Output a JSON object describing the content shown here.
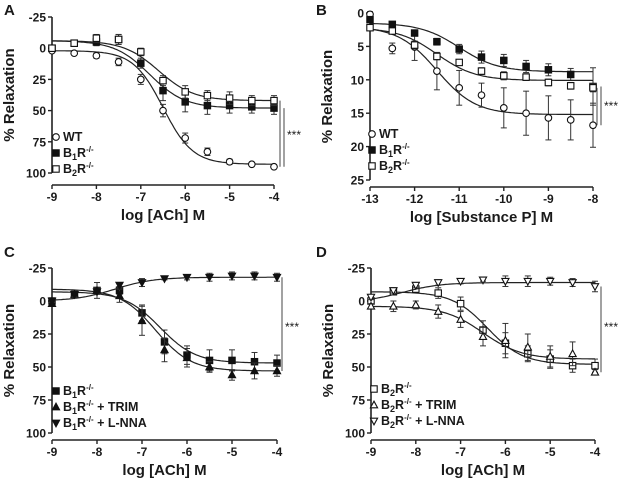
{
  "chart_data": [
    {
      "panel": "A",
      "type": "line",
      "xlabel": "log [ACh] M",
      "ylabel": "% Relaxation",
      "xlim": [
        -9,
        -4
      ],
      "ylim": [
        -25,
        100
      ],
      "y_inverted": true,
      "xticks": [
        -9,
        -8,
        -7,
        -6,
        -5,
        -4
      ],
      "yticks": [
        -25,
        0,
        25,
        50,
        75,
        100
      ],
      "x": [
        -9,
        -8.5,
        -8,
        -7.5,
        -7,
        -6.5,
        -6,
        -5.5,
        -5,
        -4.5,
        -4
      ],
      "significance": "***",
      "series": [
        {
          "name": "WT",
          "legend": {
            "base": "WT",
            "sub": "",
            "mid": "",
            "sup": "",
            "suffix": ""
          },
          "marker": "circle-open",
          "values": [
            2,
            4,
            6,
            11,
            25,
            50,
            72,
            83,
            91,
            93,
            95
          ],
          "errors": [
            1,
            1,
            2,
            3,
            4,
            5,
            4,
            3,
            2,
            1,
            1
          ],
          "fit": {
            "top": 2,
            "bottom": 93,
            "logEC50": -6.5,
            "hill": 1.3
          }
        },
        {
          "name": "B1R-/-",
          "legend": {
            "base": "B",
            "sub": "1",
            "mid": "R",
            "sup": "-/-",
            "suffix": ""
          },
          "marker": "square-filled",
          "values": [
            0,
            -4,
            -5,
            -7,
            12,
            34,
            43,
            46,
            46,
            47,
            48
          ],
          "errors": [
            1,
            1,
            3,
            4,
            4,
            8,
            8,
            7,
            6,
            5,
            5
          ],
          "fit": {
            "top": -6,
            "bottom": 48,
            "logEC50": -6.8,
            "hill": 1.1
          }
        },
        {
          "name": "B2R-/-",
          "legend": {
            "base": "B",
            "sub": "2",
            "mid": "R",
            "sup": "-/-",
            "suffix": ""
          },
          "marker": "square-open",
          "values": [
            0,
            -4,
            -8,
            -7,
            3,
            26,
            35,
            38,
            40,
            42,
            42
          ],
          "errors": [
            1,
            1,
            3,
            4,
            3,
            4,
            5,
            4,
            5,
            4,
            4
          ],
          "fit": {
            "top": -6,
            "bottom": 42,
            "logEC50": -6.6,
            "hill": 1.1
          }
        }
      ]
    },
    {
      "panel": "B",
      "type": "line",
      "xlabel": "log [Substance P] M",
      "ylabel": "% Relaxation",
      "xlim": [
        -13,
        -8
      ],
      "ylim": [
        0,
        25
      ],
      "y_inverted": true,
      "xticks": [
        -13,
        -12,
        -11,
        -10,
        -9,
        -8
      ],
      "yticks": [
        0,
        5,
        10,
        15,
        20,
        25
      ],
      "x": [
        -13,
        -12.5,
        -12,
        -11.5,
        -11,
        -10.5,
        -10,
        -9.5,
        -9,
        -8.5,
        -8
      ],
      "significance": "***",
      "series": [
        {
          "name": "WT",
          "legend": {
            "base": "WT",
            "sub": "",
            "mid": "",
            "sup": "",
            "suffix": ""
          },
          "marker": "circle-open",
          "values": [
            0.2,
            5.3,
            5.1,
            8.7,
            11.2,
            12.3,
            14.2,
            15.0,
            15.7,
            16.0,
            16.8
          ],
          "errors": [
            0.4,
            0.8,
            2.0,
            2.8,
            2.6,
            1.8,
            3.0,
            3.3,
            3.3,
            3.0,
            3.3
          ],
          "fit": {
            "top": 2,
            "bottom": 15.2,
            "logEC50": -11.5,
            "hill": 1.0
          }
        },
        {
          "name": "B1R-/-",
          "legend": {
            "base": "B",
            "sub": "1",
            "mid": "R",
            "sup": "-/-",
            "suffix": ""
          },
          "marker": "square-filled",
          "values": [
            1.0,
            1.7,
            3.0,
            4.3,
            5.4,
            6.6,
            7.1,
            8.0,
            8.5,
            9.2,
            11.0
          ],
          "errors": [
            0.3,
            0.3,
            0.4,
            0.5,
            0.7,
            0.9,
            0.9,
            0.9,
            0.9,
            0.9,
            2.8
          ],
          "fit": {
            "top": 1.5,
            "bottom": 8.8,
            "logEC50": -11.0,
            "hill": 1.0
          }
        },
        {
          "name": "B2R-/-",
          "legend": {
            "base": "B",
            "sub": "2",
            "mid": "R",
            "sup": "-/-",
            "suffix": ""
          },
          "marker": "square-open",
          "values": [
            2.2,
            2.7,
            4.8,
            6.5,
            7.4,
            8.7,
            9.4,
            9.6,
            10.4,
            10.9,
            11.2
          ],
          "errors": [
            0.3,
            0.4,
            0.6,
            0.5,
            0.4,
            0.5,
            0.6,
            0.5,
            0.5,
            0.5,
            0.6
          ],
          "fit": {
            "top": 2.2,
            "bottom": 10.1,
            "logEC50": -11.5,
            "hill": 1.0
          }
        }
      ]
    },
    {
      "panel": "C",
      "type": "line",
      "xlabel": "log [ACh] M",
      "ylabel": "% Relaxation",
      "xlim": [
        -9,
        -4
      ],
      "ylim": [
        -25,
        100
      ],
      "y_inverted": true,
      "xticks": [
        -9,
        -8,
        -7,
        -6,
        -5,
        -4
      ],
      "yticks": [
        -25,
        0,
        25,
        50,
        75,
        100
      ],
      "x": [
        -9,
        -8.5,
        -8,
        -7.5,
        -7,
        -6.5,
        -6,
        -5.5,
        -5,
        -4.5,
        -4
      ],
      "significance": "***",
      "series": [
        {
          "name": "B1R-/-",
          "legend": {
            "base": "B",
            "sub": "1",
            "mid": "R",
            "sup": "-/-",
            "suffix": ""
          },
          "marker": "square-filled",
          "values": [
            0,
            -5,
            -8,
            -8,
            9,
            31,
            41,
            45,
            45,
            46,
            47
          ],
          "errors": [
            1,
            2,
            6,
            3,
            6,
            9,
            7,
            8,
            8,
            7,
            6
          ],
          "fit": {
            "top": -7,
            "bottom": 47,
            "logEC50": -6.6,
            "hill": 1.1
          }
        },
        {
          "name": "B1R-/- + TRIM",
          "legend": {
            "base": "B",
            "sub": "1",
            "mid": "R",
            "sup": "-/-",
            "suffix": " + TRIM"
          },
          "marker": "triangle-up-filled",
          "values": [
            2,
            -5,
            -8,
            -4,
            15,
            37,
            43,
            50,
            56,
            53,
            53
          ],
          "errors": [
            2,
            2,
            2,
            5,
            11,
            9,
            7,
            4,
            4,
            6,
            4
          ],
          "fit": {
            "top": -9,
            "bottom": 53,
            "logEC50": -6.7,
            "hill": 1.1
          }
        },
        {
          "name": "B1R-/- + L-NNA",
          "legend": {
            "base": "B",
            "sub": "1",
            "mid": "R",
            "sup": "-/-",
            "suffix": " + L-NNA"
          },
          "marker": "triangle-down-filled",
          "values": [
            0,
            -5,
            -7,
            -12,
            -14,
            -17,
            -18,
            -18,
            -19,
            -19,
            -18
          ],
          "errors": [
            1,
            2,
            2,
            2,
            3,
            1,
            2,
            3,
            3,
            3,
            3
          ],
          "fit": {
            "top": 0,
            "bottom": -18,
            "logEC50": -7.6,
            "hill": 1.0
          }
        }
      ]
    },
    {
      "panel": "D",
      "type": "line",
      "xlabel": "log [ACh] M",
      "ylabel": "% Relaxation",
      "xlim": [
        -9,
        -4
      ],
      "ylim": [
        -25,
        100
      ],
      "y_inverted": true,
      "xticks": [
        -9,
        -8,
        -7,
        -6,
        -5,
        -4
      ],
      "yticks": [
        -25,
        0,
        25,
        50,
        75,
        100
      ],
      "x": [
        -9,
        -8.5,
        -8,
        -7.5,
        -7,
        -6.5,
        -6,
        -5.5,
        -5,
        -4.5,
        -4
      ],
      "significance": "***",
      "series": [
        {
          "name": "B2R-/-",
          "legend": {
            "base": "B",
            "sub": "2",
            "mid": "R",
            "sup": "-/-",
            "suffix": ""
          },
          "marker": "square-open",
          "values": [
            0,
            -7,
            -9,
            -6,
            2,
            22,
            32,
            40,
            44,
            49,
            49
          ],
          "errors": [
            2,
            2,
            2,
            4,
            5,
            7,
            8,
            6,
            7,
            5,
            5
          ],
          "fit": {
            "top": -7,
            "bottom": 48,
            "logEC50": -6.4,
            "hill": 1.1
          }
        },
        {
          "name": "B2R-/- + TRIM",
          "legend": {
            "base": "B",
            "sub": "2",
            "mid": "R",
            "sup": "-/-",
            "suffix": " + TRIM"
          },
          "marker": "triangle-up-open",
          "values": [
            4,
            4,
            3,
            8,
            14,
            27,
            30,
            35,
            42,
            40,
            54
          ],
          "errors": [
            2,
            4,
            3,
            5,
            6,
            7,
            13,
            10,
            8,
            9,
            2
          ],
          "fit": {
            "top": 4,
            "bottom": 44,
            "logEC50": -6.5,
            "hill": 1.0
          }
        },
        {
          "name": "B2R-/- + L-NNA",
          "legend": {
            "base": "B",
            "sub": "2",
            "mid": "R",
            "sup": "-/-",
            "suffix": " + L-NNA"
          },
          "marker": "triangle-down-open",
          "values": [
            -3,
            -8,
            -12,
            -14,
            -15,
            -16,
            -15,
            -15,
            -15,
            -14,
            -11
          ],
          "errors": [
            2,
            2,
            2,
            2,
            2,
            1,
            4,
            4,
            3,
            3,
            4
          ],
          "fit": {
            "top": 1,
            "bottom": -14,
            "logEC50": -8.3,
            "hill": 1.0
          }
        }
      ]
    }
  ]
}
